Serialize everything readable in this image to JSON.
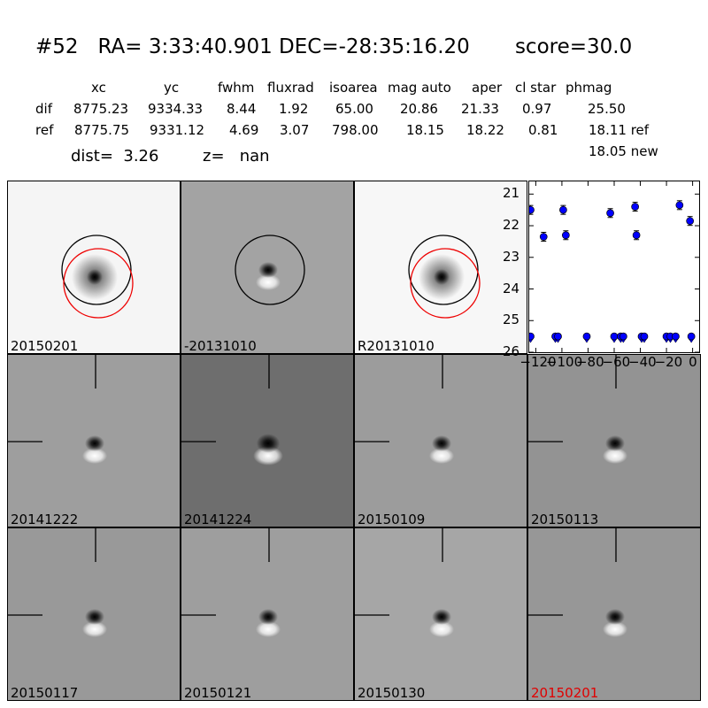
{
  "header": {
    "title": "#52   RA= 3:33:40.901 DEC=-28:35:16.20       score=30.0",
    "col_headers": [
      "xc",
      "yc",
      "fwhm",
      "fluxrad",
      "isoarea",
      "mag auto",
      "aper",
      "cl star",
      "phmag"
    ],
    "rows": [
      {
        "label": "dif",
        "values": [
          "8775.23",
          "9334.33",
          "8.44",
          "1.92",
          "65.00",
          "20.86",
          "21.33",
          "0.97",
          "25.50"
        ]
      },
      {
        "label": "ref",
        "values": [
          "8775.75",
          "9331.12",
          "4.69",
          "3.07",
          "798.00",
          "18.15",
          "18.22",
          "0.81",
          "18.11 ref"
        ]
      }
    ],
    "new_mag": "18.05 new",
    "dist_label": "dist=  3.26",
    "z_label": "z=   nan"
  },
  "stamps": [
    {
      "label": "20150201",
      "bg": "#f5f5f5",
      "circles": true,
      "cross": false,
      "style": "ref"
    },
    {
      "label": "-20131010",
      "bg": "#a3a3a3",
      "circles": true,
      "cross": false,
      "style": "diff"
    },
    {
      "label": "R20131010",
      "bg": "#f7f7f7",
      "circles": true,
      "cross": false,
      "style": "ref"
    },
    {
      "label": "20141222",
      "bg": "#9e9e9e",
      "circles": false,
      "cross": true,
      "style": "diff"
    },
    {
      "label": "20141224",
      "bg": "#6e6e6e",
      "circles": false,
      "cross": true,
      "style": "diffstrong"
    },
    {
      "label": "20150109",
      "bg": "#9c9c9c",
      "circles": false,
      "cross": true,
      "style": "diff"
    },
    {
      "label": "20150113",
      "bg": "#939393",
      "circles": false,
      "cross": true,
      "style": "diff"
    },
    {
      "label": "20150117",
      "bg": "#999999",
      "circles": false,
      "cross": true,
      "style": "diff"
    },
    {
      "label": "20150121",
      "bg": "#9e9e9e",
      "circles": false,
      "cross": true,
      "style": "diff"
    },
    {
      "label": "20150130",
      "bg": "#a6a6a6",
      "circles": false,
      "cross": true,
      "style": "diff"
    },
    {
      "label": "20150201",
      "bg": "#979797",
      "circles": false,
      "cross": true,
      "style": "diff",
      "label_color": "#e00000"
    }
  ],
  "chart_data": {
    "type": "scatter",
    "title": "",
    "xlabel": "",
    "ylabel": "",
    "xlim": [
      -125,
      5
    ],
    "ylim": [
      26,
      20.6
    ],
    "y_inverted": true,
    "x_ticks": [
      -120,
      -100,
      -80,
      -60,
      -40,
      -20,
      0
    ],
    "x_tick_labels": [
      "−120",
      "−100",
      "−80",
      "−60",
      "−40",
      "−20",
      "0"
    ],
    "y_ticks": [
      21,
      22,
      23,
      24,
      25,
      26
    ],
    "y_tick_labels": [
      "21",
      "22",
      "23",
      "24",
      "25",
      "26"
    ],
    "marker_color": "#0000ff",
    "detections": [
      {
        "x": -124,
        "y": 21.5
      },
      {
        "x": -114,
        "y": 22.35
      },
      {
        "x": -99,
        "y": 21.5
      },
      {
        "x": -97,
        "y": 22.3
      },
      {
        "x": -63,
        "y": 21.6
      },
      {
        "x": -44,
        "y": 21.4
      },
      {
        "x": -43,
        "y": 22.3
      },
      {
        "x": -10,
        "y": 21.35
      },
      {
        "x": -2,
        "y": 21.85
      }
    ],
    "upper_limits": [
      {
        "x": -124,
        "y": 25.5
      },
      {
        "x": -105,
        "y": 25.5
      },
      {
        "x": -103,
        "y": 25.5
      },
      {
        "x": -81,
        "y": 25.5
      },
      {
        "x": -60,
        "y": 25.5
      },
      {
        "x": -55,
        "y": 25.5
      },
      {
        "x": -53,
        "y": 25.5
      },
      {
        "x": -39,
        "y": 25.5
      },
      {
        "x": -37,
        "y": 25.5
      },
      {
        "x": -20,
        "y": 25.5
      },
      {
        "x": -17,
        "y": 25.5
      },
      {
        "x": -13,
        "y": 25.5
      },
      {
        "x": -1,
        "y": 25.5
      }
    ]
  }
}
